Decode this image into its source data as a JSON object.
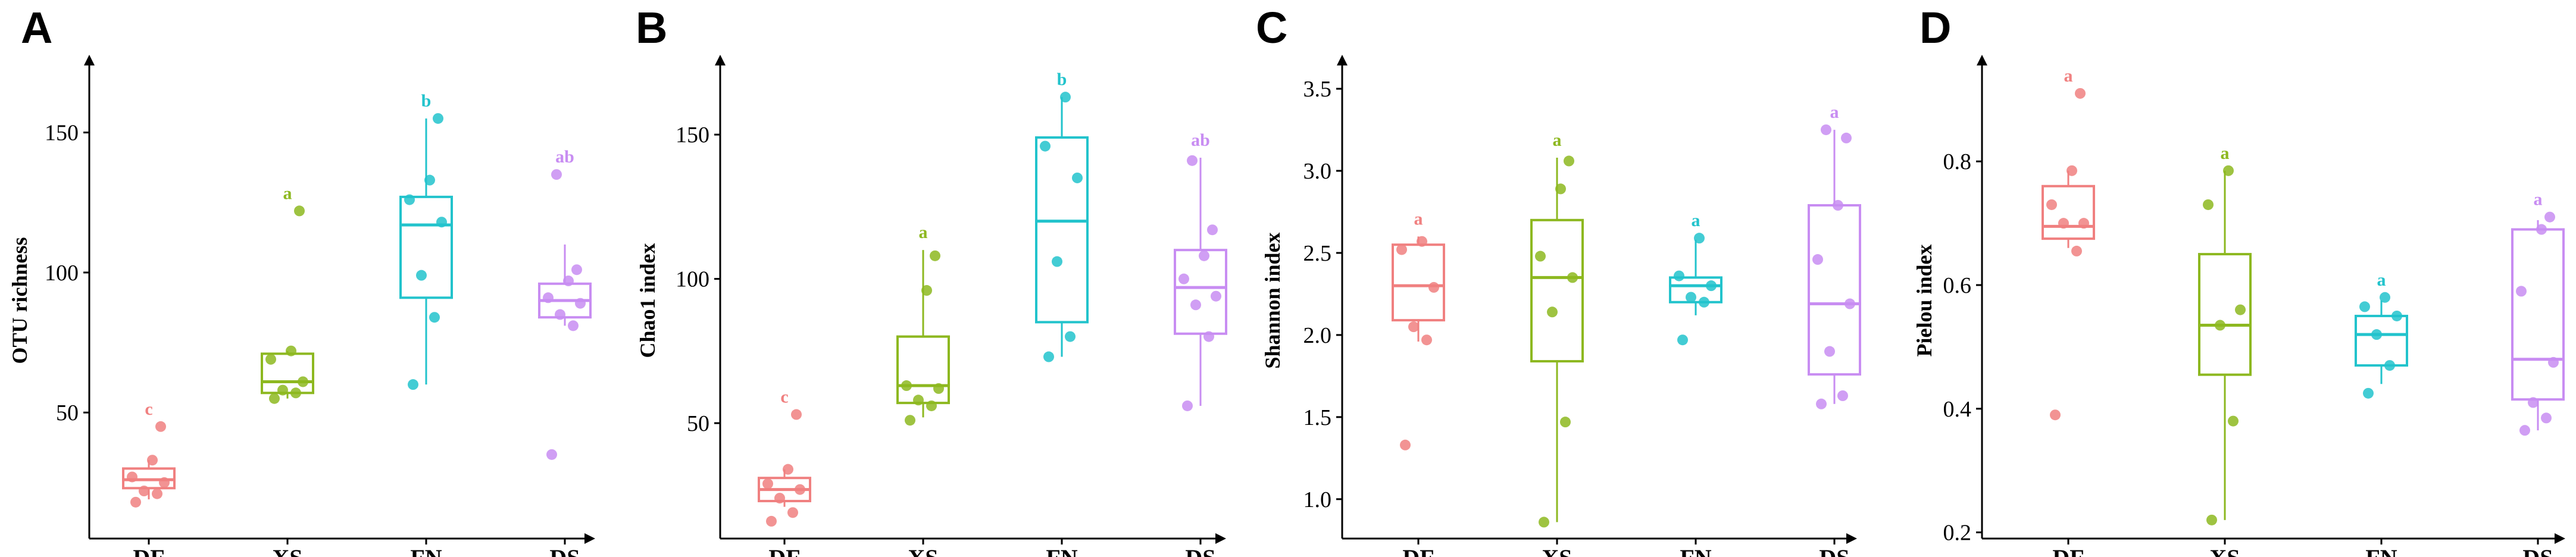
{
  "chart_data": [
    {
      "panel": "A",
      "type": "box",
      "ylabel": "OTU richness",
      "categories": [
        "DF",
        "XS",
        "FN",
        "DS"
      ],
      "yticks": [
        50,
        100,
        150
      ],
      "ylim": [
        5,
        175
      ],
      "colors": [
        "#f08080",
        "#8db820",
        "#22c3cc",
        "#c88df2"
      ],
      "boxes": [
        {
          "group": "DF",
          "min": 19,
          "q1": 23,
          "median": 26,
          "q3": 30,
          "max": 33,
          "letter": "c",
          "points": [
            18,
            21,
            22,
            25,
            27,
            33,
            45
          ]
        },
        {
          "group": "XS",
          "min": 55,
          "q1": 57,
          "median": 61,
          "q3": 71,
          "max": 72,
          "letter": "a",
          "points": [
            55,
            57,
            58,
            61,
            69,
            72,
            122
          ]
        },
        {
          "group": "FN",
          "min": 60,
          "q1": 91,
          "median": 117,
          "q3": 127,
          "max": 155,
          "letter": "b",
          "points": [
            60,
            84,
            99,
            118,
            126,
            133,
            155
          ]
        },
        {
          "group": "DS",
          "min": 81,
          "q1": 84,
          "median": 90,
          "q3": 96,
          "max": 110,
          "letter": "ab",
          "points": [
            35,
            81,
            85,
            89,
            91,
            97,
            101,
            135
          ]
        }
      ]
    },
    {
      "panel": "B",
      "type": "box",
      "ylabel": "Chao1 index",
      "categories": [
        "DF",
        "XS",
        "FN",
        "DS"
      ],
      "yticks": [
        50,
        100,
        150
      ],
      "ylim": [
        10,
        175
      ],
      "colors": [
        "#f08080",
        "#8db820",
        "#22c3cc",
        "#c88df2"
      ],
      "boxes": [
        {
          "group": "DF",
          "min": 21,
          "q1": 23,
          "median": 27,
          "q3": 31,
          "max": 34,
          "letter": "c",
          "points": [
            16,
            19,
            24,
            27,
            29,
            34,
            53
          ]
        },
        {
          "group": "XS",
          "min": 52,
          "q1": 57,
          "median": 63,
          "q3": 80,
          "max": 110,
          "letter": "a",
          "points": [
            51,
            56,
            58,
            62,
            63,
            96,
            108
          ]
        },
        {
          "group": "FN",
          "min": 73,
          "q1": 85,
          "median": 120,
          "q3": 149,
          "max": 163,
          "letter": "b",
          "points": [
            73,
            80,
            106,
            135,
            146,
            163
          ]
        },
        {
          "group": "DS",
          "min": 56,
          "q1": 81,
          "median": 97,
          "q3": 110,
          "max": 142,
          "letter": "ab",
          "points": [
            56,
            80,
            91,
            94,
            100,
            108,
            117,
            141
          ]
        }
      ]
    },
    {
      "panel": "C",
      "type": "box",
      "ylabel": "Shannon index",
      "categories": [
        "DF",
        "XS",
        "FN",
        "DS"
      ],
      "yticks": [
        1.0,
        1.5,
        2.0,
        2.5,
        3.0,
        3.5
      ],
      "ylim": [
        0.76,
        3.66
      ],
      "colors": [
        "#f08080",
        "#8db820",
        "#22c3cc",
        "#c88df2"
      ],
      "boxes": [
        {
          "group": "DF",
          "min": 1.96,
          "q1": 2.09,
          "median": 2.3,
          "q3": 2.55,
          "max": 2.6,
          "letter": "a",
          "points": [
            1.33,
            1.97,
            2.05,
            2.29,
            2.52,
            2.57
          ]
        },
        {
          "group": "XS",
          "min": 0.86,
          "q1": 1.84,
          "median": 2.35,
          "q3": 2.7,
          "max": 3.08,
          "letter": "a",
          "points": [
            0.86,
            1.47,
            2.14,
            2.35,
            2.48,
            2.89,
            3.06
          ]
        },
        {
          "group": "FN",
          "min": 2.12,
          "q1": 2.2,
          "median": 2.3,
          "q3": 2.35,
          "max": 2.58,
          "letter": "a",
          "points": [
            1.97,
            2.2,
            2.23,
            2.3,
            2.36,
            2.59
          ]
        },
        {
          "group": "DS",
          "min": 1.58,
          "q1": 1.76,
          "median": 2.19,
          "q3": 2.79,
          "max": 3.25,
          "letter": "a",
          "points": [
            1.58,
            1.63,
            1.9,
            2.19,
            2.46,
            2.79,
            3.2,
            3.25
          ]
        }
      ]
    },
    {
      "panel": "D",
      "type": "box",
      "ylabel": "Pielou index",
      "categories": [
        "DF",
        "XS",
        "FN",
        "DS"
      ],
      "yticks": [
        0.2,
        0.4,
        0.6,
        0.8
      ],
      "ylim": [
        0.19,
        0.96
      ],
      "colors": [
        "#f08080",
        "#8db820",
        "#22c3cc",
        "#c88df2"
      ],
      "boxes": [
        {
          "group": "DF",
          "min": 0.66,
          "q1": 0.675,
          "median": 0.695,
          "q3": 0.76,
          "max": 0.785,
          "letter": "a",
          "points": [
            0.39,
            0.655,
            0.7,
            0.7,
            0.73,
            0.785,
            0.91
          ]
        },
        {
          "group": "XS",
          "min": 0.22,
          "q1": 0.455,
          "median": 0.535,
          "q3": 0.65,
          "max": 0.785,
          "letter": "a",
          "points": [
            0.22,
            0.38,
            0.535,
            0.56,
            0.73,
            0.785
          ]
        },
        {
          "group": "FN",
          "min": 0.44,
          "q1": 0.47,
          "median": 0.52,
          "q3": 0.55,
          "max": 0.575,
          "letter": "a",
          "points": [
            0.425,
            0.47,
            0.52,
            0.55,
            0.565,
            0.58
          ]
        },
        {
          "group": "DS",
          "min": 0.365,
          "q1": 0.415,
          "median": 0.48,
          "q3": 0.69,
          "max": 0.705,
          "letter": "a",
          "points": [
            0.365,
            0.385,
            0.41,
            0.475,
            0.59,
            0.69,
            0.71
          ]
        }
      ]
    }
  ]
}
